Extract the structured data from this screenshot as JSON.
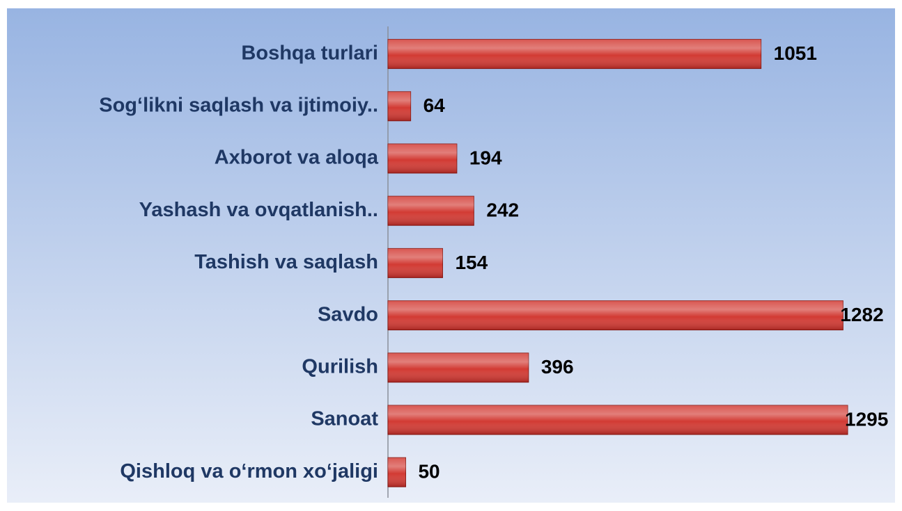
{
  "chart_data": {
    "type": "bar",
    "orientation": "horizontal",
    "categories": [
      "Boshqa turlari",
      "Sog‘likni saqlash va ijtimoiy..",
      "Axborot va aloqa",
      "Yashash va ovqatlanish..",
      "Tashish va saqlash",
      "Savdo",
      "Qurilish",
      "Sanoat",
      "Qishloq va o‘rmon xo‘jaligi"
    ],
    "values": [
      1051,
      64,
      194,
      242,
      154,
      1282,
      396,
      1295,
      50
    ],
    "color": "#d23a33"
  }
}
